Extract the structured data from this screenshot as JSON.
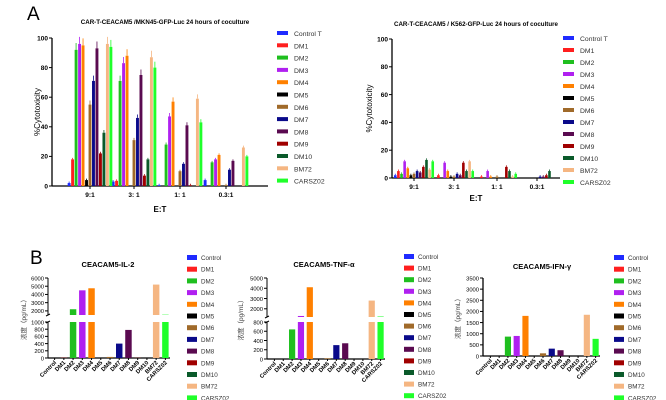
{
  "panels": {
    "a": "A",
    "b": "B"
  },
  "legend_colors": {
    "Control T": "#1f2bff",
    "Control": "#1f2bff",
    "DM1": "#ff1f1f",
    "DM2": "#1fbf1f",
    "DM3": "#b020f0",
    "DM4": "#ff8000",
    "DM5": "#000000",
    "DM6": "#a06a2a",
    "DM7": "#0a0a8a",
    "DM8": "#5a0a50",
    "DM9": "#a00000",
    "DM10": "#0a5a2a",
    "BM72": "#f5b682",
    "CARSZ02": "#1fff2a"
  },
  "chart_data": [
    {
      "type": "bar",
      "title": "CAR-T-CEACAM5 /MKN45-GFP-Luc 24 hours of coculture",
      "xlabel": "E:T",
      "ylabel": "%Cytotoxicity",
      "categories": [
        "9:1",
        "3: 1",
        "1: 1",
        "0.3:1"
      ],
      "ylim": [
        0,
        100
      ],
      "yticks": [
        0,
        20,
        40,
        60,
        80,
        100
      ],
      "legend": "right",
      "series": [
        {
          "name": "Control T",
          "values": [
            2,
            3,
            0.5,
            4
          ]
        },
        {
          "name": "DM1",
          "values": [
            18,
            3.5,
            0,
            0
          ]
        },
        {
          "name": "DM2",
          "values": [
            92,
            71,
            28,
            16
          ]
        },
        {
          "name": "DM3",
          "values": [
            96,
            83,
            47,
            18
          ]
        },
        {
          "name": "DM4",
          "values": [
            95,
            88,
            57,
            21
          ]
        },
        {
          "name": "DM5",
          "values": [
            4,
            0,
            0,
            0
          ]
        },
        {
          "name": "DM6",
          "values": [
            55,
            31,
            10,
            0.5
          ]
        },
        {
          "name": "DM7",
          "values": [
            71,
            46,
            15,
            11
          ]
        },
        {
          "name": "DM8",
          "values": [
            93,
            75,
            41,
            17
          ]
        },
        {
          "name": "DM9",
          "values": [
            22,
            7,
            0.5,
            0
          ]
        },
        {
          "name": "DM10",
          "values": [
            36,
            18,
            0,
            0
          ]
        },
        {
          "name": "BM72",
          "values": [
            96,
            87,
            59,
            26
          ]
        },
        {
          "name": "CARSZ02",
          "values": [
            94,
            80,
            43,
            20
          ]
        }
      ]
    },
    {
      "type": "bar",
      "title": "CAR-T-CEACAM5 / K562-GFP-Luc 24 hours of coculture",
      "xlabel": "E:T",
      "ylabel": "%Cytotoxicity",
      "categories": [
        "9:1",
        "3: 1",
        "1: 1",
        "0.3:1"
      ],
      "ylim": [
        0,
        100
      ],
      "yticks": [
        0,
        20,
        40,
        60,
        80,
        100
      ],
      "legend": "right",
      "series": [
        {
          "name": "Control T",
          "values": [
            2,
            0,
            0,
            0
          ]
        },
        {
          "name": "DM1",
          "values": [
            5,
            2,
            1,
            0
          ]
        },
        {
          "name": "DM2",
          "values": [
            3,
            0,
            0,
            0
          ]
        },
        {
          "name": "DM3",
          "values": [
            12,
            11,
            5,
            0
          ]
        },
        {
          "name": "DM4",
          "values": [
            7,
            5,
            1,
            0
          ]
        },
        {
          "name": "DM5",
          "values": [
            2,
            1,
            0,
            0
          ]
        },
        {
          "name": "DM6",
          "values": [
            3,
            1,
            1,
            0
          ]
        },
        {
          "name": "DM7",
          "values": [
            5,
            3,
            0,
            1
          ]
        },
        {
          "name": "DM8",
          "values": [
            4,
            2,
            0,
            1
          ]
        },
        {
          "name": "DM9",
          "values": [
            8,
            11,
            8,
            2
          ]
        },
        {
          "name": "DM10",
          "values": [
            13,
            5,
            5,
            5
          ]
        },
        {
          "name": "BM72",
          "values": [
            6,
            12,
            1,
            0
          ]
        },
        {
          "name": "CARSZ02",
          "values": [
            12,
            5,
            3,
            0
          ]
        }
      ]
    },
    {
      "type": "bar",
      "title": "CEACAM5-IL-2",
      "ylabel": "浓度（pg/mL）",
      "legend": "right",
      "categories": [
        "Control",
        "DM1",
        "DM2",
        "DM3",
        "DM4",
        "DM5",
        "DM6",
        "DM7",
        "DM8",
        "DM9",
        "DM10",
        "BM72",
        "CARSZ02"
      ],
      "values": [
        0,
        5,
        2200,
        4500,
        4750,
        0,
        30,
        400,
        780,
        5,
        0,
        5200,
        1500
      ],
      "axis_break": {
        "lower": [
          0,
          1000
        ],
        "upper": [
          1500,
          6000
        ]
      },
      "yticks_lower": [
        0,
        200,
        400,
        600,
        800,
        1000
      ],
      "yticks_upper": [
        2000,
        3000,
        4000,
        5000,
        6000
      ]
    },
    {
      "type": "bar",
      "title": "CEACAM5-TNF-α",
      "ylabel": "浓度（pg/mL）",
      "legend": "right",
      "categories": [
        "Control",
        "DM1",
        "DM2",
        "DM3",
        "DM4",
        "DM5",
        "DM6",
        "DM7",
        "DM8",
        "DM9",
        "DM10",
        "BM72",
        "CARSZ02"
      ],
      "values": [
        0,
        0,
        640,
        1300,
        4100,
        0,
        15,
        300,
        340,
        0,
        0,
        2800,
        1250
      ],
      "axis_break": {
        "lower": [
          0,
          800
        ],
        "upper": [
          1200,
          5000
        ]
      },
      "yticks_lower": [
        0,
        200,
        400,
        600,
        800
      ],
      "yticks_upper": [
        2000,
        3000,
        4000,
        5000
      ]
    },
    {
      "type": "bar",
      "title": "CEACAM5-IFN-γ",
      "ylabel": "浓度（pg/mL）",
      "legend": "right",
      "categories": [
        "Control",
        "DM1",
        "DM2",
        "DM3",
        "DM4",
        "DM5",
        "DM6",
        "DM7",
        "DM8",
        "DM9",
        "DM10",
        "BM72",
        "CARSZ02"
      ],
      "values": [
        0,
        0,
        870,
        900,
        1800,
        0,
        120,
        330,
        260,
        0,
        0,
        1850,
        770
      ],
      "ylim": [
        0,
        3500
      ],
      "yticks": [
        0,
        500,
        1000,
        1500,
        2000,
        2500,
        3000,
        3500
      ]
    }
  ]
}
